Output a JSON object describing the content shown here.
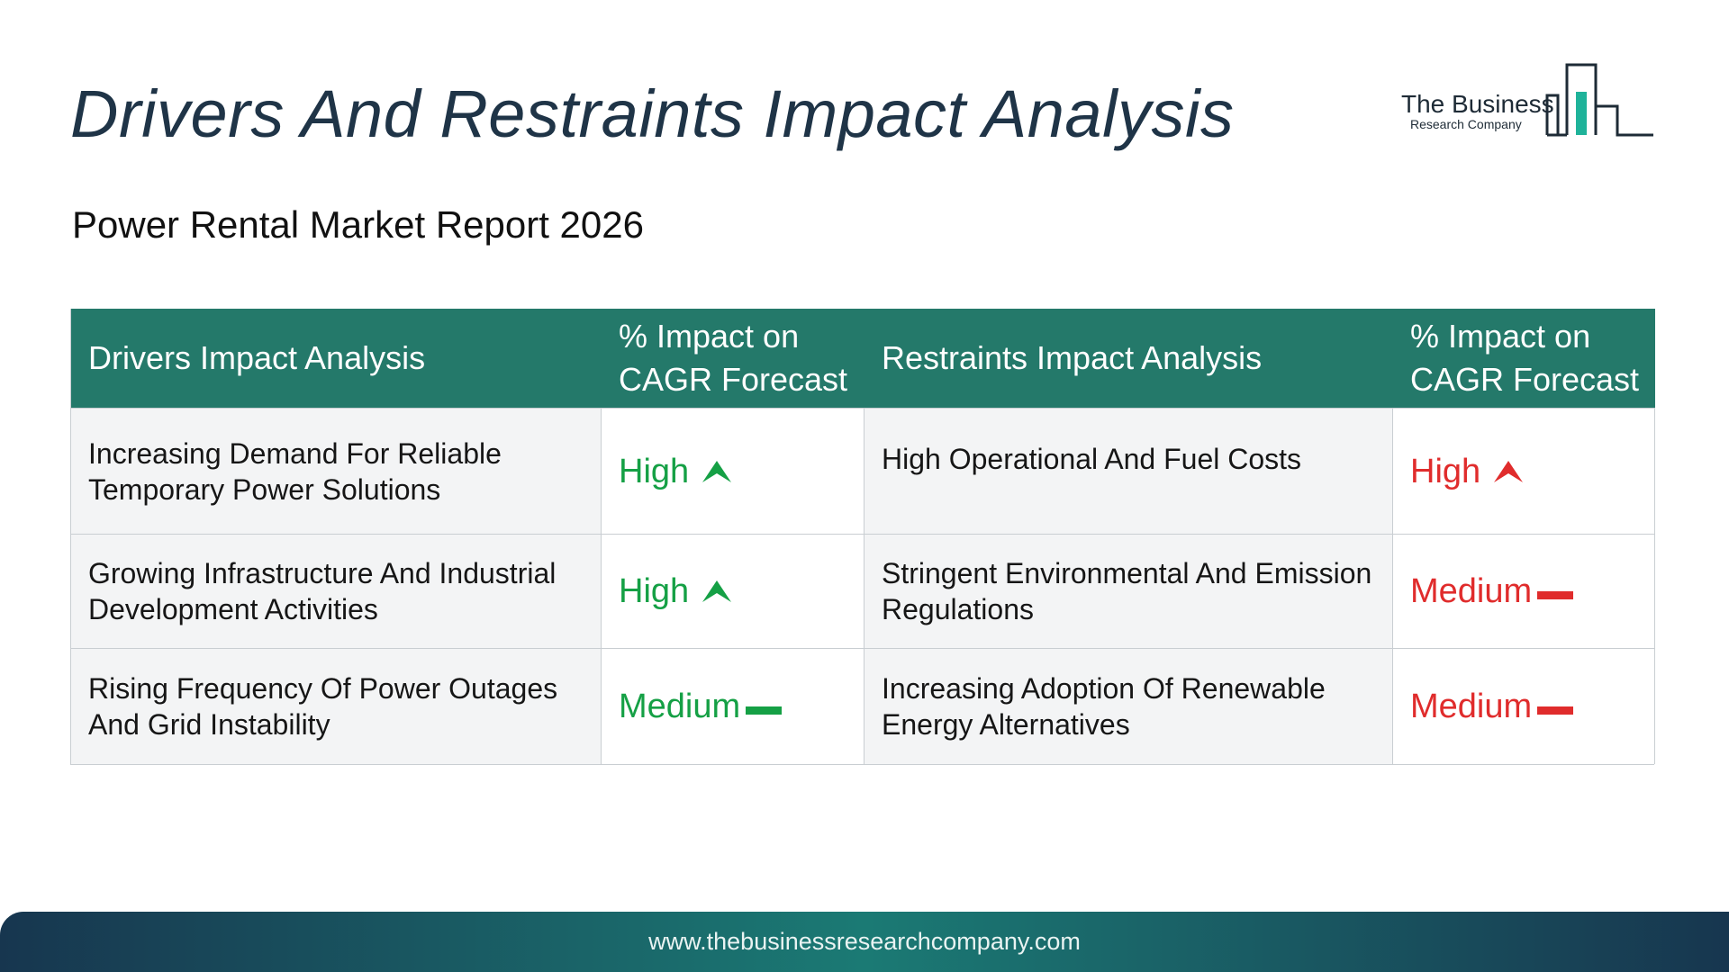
{
  "title": "Drivers And Restraints Impact Analysis",
  "subtitle": "Power Rental Market Report 2026",
  "logo": {
    "name": "The Business",
    "sub": "Research Company",
    "icon": "bar-building-icon"
  },
  "table": {
    "headers": [
      "Drivers Impact Analysis",
      "% Impact on CAGR Forecast",
      "Restraints Impact Analysis",
      "% Impact on CAGR Forecast"
    ],
    "rows": [
      {
        "driver": "Increasing Demand For Reliable Temporary Power Solutions",
        "driver_impact": "High",
        "driver_icon": "up-arrow-icon",
        "restraint": "High Operational And Fuel Costs",
        "restraint_impact": "High",
        "restraint_icon": "up-arrow-icon"
      },
      {
        "driver": "Growing Infrastructure And Industrial Development Activities",
        "driver_impact": "High",
        "driver_icon": "up-arrow-icon",
        "restraint": "Stringent Environmental And Emission Regulations",
        "restraint_impact": "Medium",
        "restraint_icon": "dash-icon"
      },
      {
        "driver": "Rising Frequency Of Power Outages And Grid Instability",
        "driver_impact": "Medium",
        "driver_icon": "dash-icon",
        "restraint": "Increasing Adoption Of Renewable Energy Alternatives",
        "restraint_impact": "Medium",
        "restraint_icon": "dash-icon"
      }
    ]
  },
  "colors": {
    "header_bg": "#24796a",
    "title": "#1f3447",
    "driver_impact": "#15a045",
    "restraint_impact": "#e02c2c"
  },
  "footer": {
    "url": "www.thebusinessresearchcompany.com"
  }
}
